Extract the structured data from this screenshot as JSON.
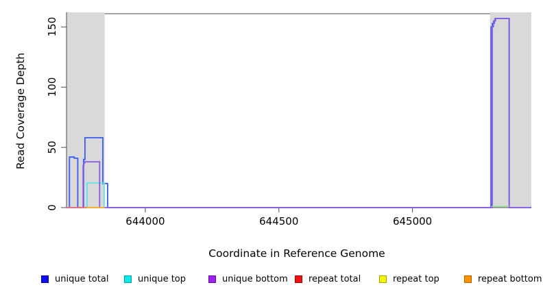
{
  "figure": {
    "background": "#ffffff",
    "band_color": "#d9d9d9",
    "axis_color": "#4b4b4b"
  },
  "chart_data": {
    "type": "line",
    "title": "",
    "xlabel": "Coordinate in Reference Genome",
    "ylabel": "Read Coverage Depth",
    "xlim": [
      643705,
      645445
    ],
    "ylim": [
      0,
      161
    ],
    "x_ticks": [
      644000,
      644500,
      645000
    ],
    "y_ticks": [
      0,
      50,
      100,
      150
    ],
    "grid": false,
    "legend_position": "bottom",
    "shaded_regions": [
      {
        "name": "left-flank-region",
        "x1": 643705,
        "x2": 643848
      },
      {
        "name": "right-flank-region",
        "x1": 645290,
        "x2": 645445
      }
    ],
    "series": [
      {
        "name": "unique total",
        "color": "#3b5bee",
        "points": [
          [
            643705,
            0
          ],
          [
            643716,
            0
          ],
          [
            643716,
            42
          ],
          [
            643734,
            42
          ],
          [
            643734,
            41
          ],
          [
            643747,
            41
          ],
          [
            643747,
            0
          ],
          [
            643769,
            0
          ],
          [
            643769,
            40
          ],
          [
            643774,
            40
          ],
          [
            643774,
            58
          ],
          [
            643841,
            58
          ],
          [
            643841,
            20
          ],
          [
            643859,
            20
          ],
          [
            643859,
            0
          ],
          [
            645294,
            0
          ],
          [
            645294,
            150
          ],
          [
            645299,
            150
          ],
          [
            645299,
            153
          ],
          [
            645304,
            153
          ],
          [
            645304,
            155
          ],
          [
            645309,
            155
          ],
          [
            645309,
            157
          ],
          [
            645362,
            157
          ],
          [
            645362,
            0
          ],
          [
            645445,
            0
          ]
        ]
      },
      {
        "name": "unique top",
        "color": "#5fe3e3",
        "points": [
          [
            643705,
            0
          ],
          [
            643782,
            0
          ],
          [
            643782,
            20.5
          ],
          [
            643846,
            20.5
          ],
          [
            643846,
            0
          ],
          [
            643865,
            0
          ]
        ]
      },
      {
        "name": "unique bottom",
        "color": "#8a5ce4",
        "points": [
          [
            643705,
            0
          ],
          [
            643767,
            0
          ],
          [
            643767,
            35
          ],
          [
            643770,
            35
          ],
          [
            643770,
            37
          ],
          [
            643773,
            37
          ],
          [
            643773,
            38
          ],
          [
            643829,
            38
          ],
          [
            643829,
            0
          ],
          [
            645299,
            0
          ],
          [
            645299,
            150
          ],
          [
            645303,
            150
          ],
          [
            645303,
            153
          ],
          [
            645307,
            153
          ],
          [
            645307,
            155
          ],
          [
            645311,
            155
          ],
          [
            645311,
            157
          ],
          [
            645362,
            157
          ],
          [
            645362,
            0
          ],
          [
            645445,
            0
          ]
        ]
      },
      {
        "name": "repeat total",
        "color": "#f26d6d",
        "points": [
          [
            643706,
            0
          ],
          [
            643783,
            0
          ]
        ]
      },
      {
        "name": "repeat top",
        "color": "#f5f56a",
        "points": [
          [
            643782,
            0
          ],
          [
            643846,
            0
          ]
        ]
      },
      {
        "name": "repeat bottom",
        "color": "#ffa125",
        "points": [
          [
            643779,
            0
          ],
          [
            643848,
            0
          ]
        ]
      }
    ],
    "overlap_artifacts": [
      {
        "color": "#90e690",
        "x1": 645295,
        "x2": 645362,
        "y": 1
      }
    ],
    "legend": [
      {
        "label": "unique total",
        "fill": "#0d0df5",
        "border": "#0000a0"
      },
      {
        "label": "unique top",
        "fill": "#0ae8e8",
        "border": "#00a0a0"
      },
      {
        "label": "unique bottom",
        "fill": "#a020f0",
        "border": "#6a0dad"
      },
      {
        "label": "repeat total",
        "fill": "#ee1111",
        "border": "#a00000"
      },
      {
        "label": "repeat top",
        "fill": "#f5f500",
        "border": "#a0a000"
      },
      {
        "label": "repeat bottom",
        "fill": "#ff9100",
        "border": "#b36200"
      }
    ]
  }
}
